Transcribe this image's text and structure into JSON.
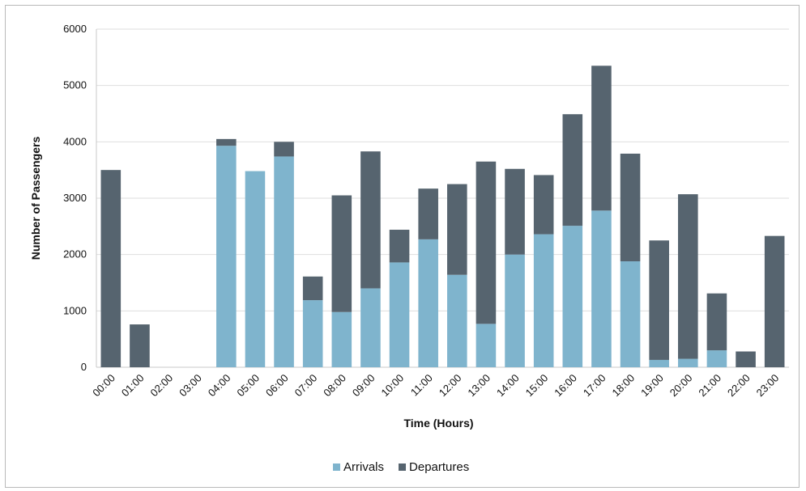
{
  "chart_data": {
    "type": "bar",
    "stacked": true,
    "title": "",
    "xlabel": "Time (Hours)",
    "ylabel": "Number of Passengers",
    "ylim": [
      0,
      6000
    ],
    "yticks": [
      0,
      1000,
      2000,
      3000,
      4000,
      5000,
      6000
    ],
    "grid": true,
    "legend_position": "bottom",
    "categories": [
      "00:00",
      "01:00",
      "02:00",
      "03:00",
      "04:00",
      "05:00",
      "06:00",
      "07:00",
      "08:00",
      "09:00",
      "10:00",
      "11:00",
      "12:00",
      "13:00",
      "14:00",
      "15:00",
      "16:00",
      "17:00",
      "18:00",
      "19:00",
      "20:00",
      "21:00",
      "22:00",
      "23:00"
    ],
    "series": [
      {
        "name": "Arrivals",
        "color": "#7fb4cd",
        "values": [
          0,
          0,
          0,
          0,
          3930,
          3480,
          3740,
          1190,
          980,
          1400,
          1860,
          2270,
          1640,
          770,
          2000,
          2360,
          2510,
          2780,
          1880,
          130,
          150,
          300,
          0,
          0
        ]
      },
      {
        "name": "Departures",
        "color": "#56646f",
        "values": [
          3500,
          760,
          0,
          0,
          120,
          0,
          260,
          420,
          2070,
          2430,
          580,
          900,
          1610,
          2880,
          1520,
          1050,
          1980,
          2570,
          1910,
          2120,
          2920,
          1010,
          280,
          2330
        ]
      }
    ]
  }
}
